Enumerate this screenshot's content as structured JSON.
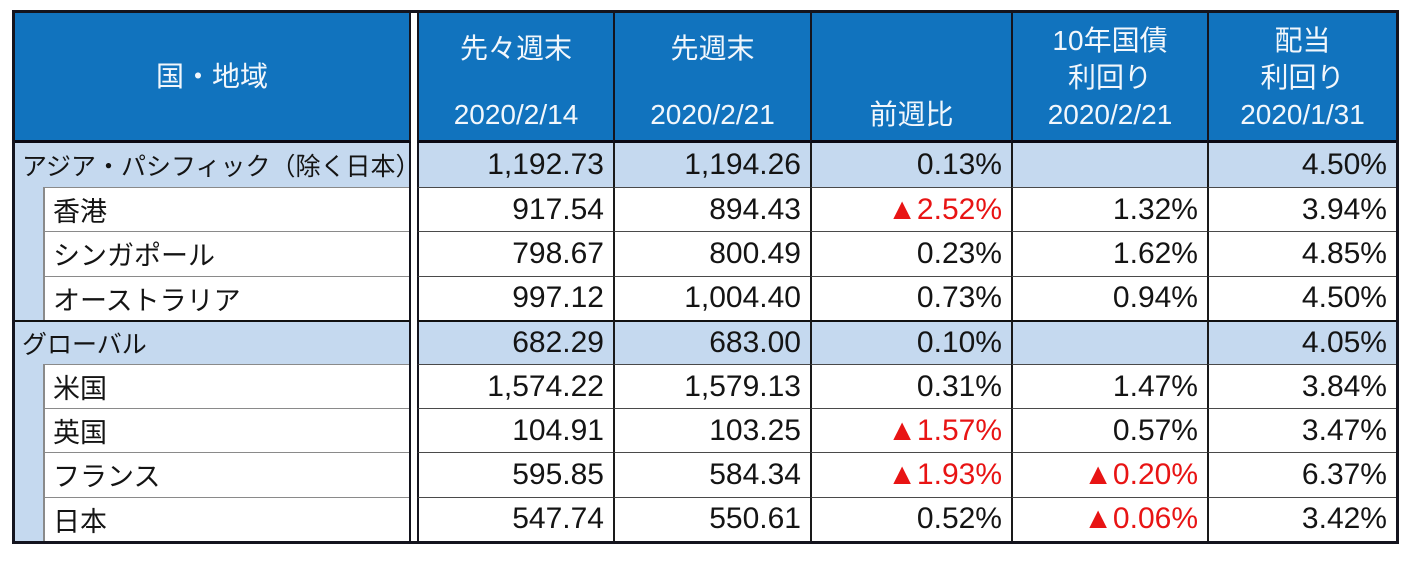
{
  "chart_data": {
    "type": "table",
    "columns": [
      {
        "label": "国・地域"
      },
      {
        "label": "先々週末",
        "date": "2020/2/14"
      },
      {
        "label": "先週末",
        "date": "2020/2/21"
      },
      {
        "label": "前週比"
      },
      {
        "label": "10年国債",
        "label2": "利回り",
        "date": "2020/2/21"
      },
      {
        "label": "配当",
        "label2": "利回り",
        "date": "2020/1/31"
      }
    ],
    "rows": [
      {
        "name": "アジア・パシフィック（除く日本）",
        "level": "group",
        "prev2": "1,192.73",
        "prev1": "1,194.26",
        "wow": "0.13%",
        "bond": "",
        "div": "4.50%"
      },
      {
        "name": "香港",
        "level": "sub",
        "prev2": "917.54",
        "prev1": "894.43",
        "wow": "▲2.52%",
        "bond": "1.32%",
        "div": "3.94%"
      },
      {
        "name": "シンガポール",
        "level": "sub",
        "prev2": "798.67",
        "prev1": "800.49",
        "wow": "0.23%",
        "bond": "1.62%",
        "div": "4.85%"
      },
      {
        "name": "オーストラリア",
        "level": "sub",
        "prev2": "997.12",
        "prev1": "1,004.40",
        "wow": "0.73%",
        "bond": "0.94%",
        "div": "4.50%"
      },
      {
        "name": "グローバル",
        "level": "group",
        "prev2": "682.29",
        "prev1": "683.00",
        "wow": "0.10%",
        "bond": "",
        "div": "4.05%"
      },
      {
        "name": "米国",
        "level": "sub",
        "prev2": "1,574.22",
        "prev1": "1,579.13",
        "wow": "0.31%",
        "bond": "1.47%",
        "div": "3.84%"
      },
      {
        "name": "英国",
        "level": "sub",
        "prev2": "104.91",
        "prev1": "103.25",
        "wow": "▲1.57%",
        "bond": "0.57%",
        "div": "3.47%"
      },
      {
        "name": "フランス",
        "level": "sub",
        "prev2": "595.85",
        "prev1": "584.34",
        "wow": "▲1.93%",
        "bond": "▲0.20%",
        "div": "6.37%"
      },
      {
        "name": "日本",
        "level": "sub",
        "prev2": "547.74",
        "prev1": "550.61",
        "wow": "0.52%",
        "bond": "▲0.06%",
        "div": "3.42%"
      }
    ],
    "negative_marker": "▲",
    "colors": {
      "header_bg": "#1173BE",
      "band_bg": "#C5D9EF",
      "negative_red": "#E81414"
    }
  }
}
